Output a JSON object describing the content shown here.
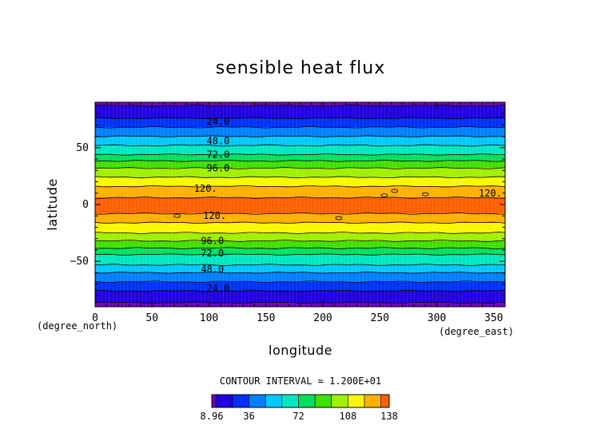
{
  "chart_data": {
    "type": "heatmap",
    "title": "sensible heat flux",
    "xlabel": "longitude",
    "ylabel": "latitude",
    "x_unit": "(degree_east)",
    "y_unit": "(degree_north)",
    "xlim": [
      0,
      360
    ],
    "ylim": [
      -90,
      90
    ],
    "x_ticks": [
      0,
      50,
      100,
      150,
      200,
      250,
      300,
      350
    ],
    "y_ticks": [
      -50,
      0,
      50
    ],
    "contour_interval_text": "CONTOUR INTERVAL = 1.200E+01",
    "zonal_profile": {
      "latitude": [
        -90,
        -84,
        -80,
        -76,
        -72,
        -68,
        -64,
        -60,
        -56,
        -52,
        -48,
        -44,
        -40,
        -36,
        -32,
        -28,
        -24,
        -20,
        -16,
        -12,
        -8,
        -4,
        0,
        4,
        8,
        12,
        16,
        20,
        24,
        28,
        32,
        36,
        40,
        44,
        48,
        52,
        56,
        60,
        64,
        68,
        72,
        76,
        80,
        84,
        90
      ],
      "value": [
        8.96,
        14,
        20,
        24,
        30,
        36,
        42,
        48,
        55,
        62,
        68,
        72,
        80,
        90,
        96,
        102,
        110,
        115,
        120,
        127,
        132,
        136,
        137,
        134,
        130,
        125,
        120,
        115,
        108,
        100,
        96,
        90,
        80,
        72,
        66,
        60,
        52,
        48,
        42,
        36,
        30,
        24,
        18,
        14,
        10
      ]
    },
    "contour_labels": [
      {
        "text": "24.0",
        "lon": 108,
        "lat": 73
      },
      {
        "text": "48.0",
        "lon": 108,
        "lat": 56
      },
      {
        "text": "72.0",
        "lon": 108,
        "lat": 44
      },
      {
        "text": "96.0",
        "lon": 108,
        "lat": 32
      },
      {
        "text": "120.",
        "lon": 97,
        "lat": 14
      },
      {
        "text": "120.",
        "lon": 347,
        "lat": 10
      },
      {
        "text": "120.",
        "lon": 105,
        "lat": -10
      },
      {
        "text": "96.0",
        "lon": 103,
        "lat": -32
      },
      {
        "text": "72.0",
        "lon": 103,
        "lat": -43
      },
      {
        "text": "48.0",
        "lon": 103,
        "lat": -57
      },
      {
        "text": "24.0",
        "lon": 108,
        "lat": -74
      }
    ],
    "colorbar": {
      "levels": [
        8.96,
        12,
        24,
        36,
        48,
        60,
        72,
        84,
        96,
        108,
        120,
        132,
        138
      ],
      "tick_labels": [
        "8.96",
        "36",
        "72",
        "108",
        "138"
      ],
      "tick_values": [
        8.96,
        36,
        72,
        108,
        138
      ]
    },
    "colors": [
      "#7000b8",
      "#2000e0",
      "#0030ff",
      "#0080ff",
      "#00c8ff",
      "#00e8c0",
      "#00e060",
      "#40e000",
      "#a0f000",
      "#f8f800",
      "#ffb000",
      "#ff6000",
      "#ff2040",
      "#ffa0a0"
    ],
    "grid": false,
    "legend": "colorbar-bottom"
  }
}
